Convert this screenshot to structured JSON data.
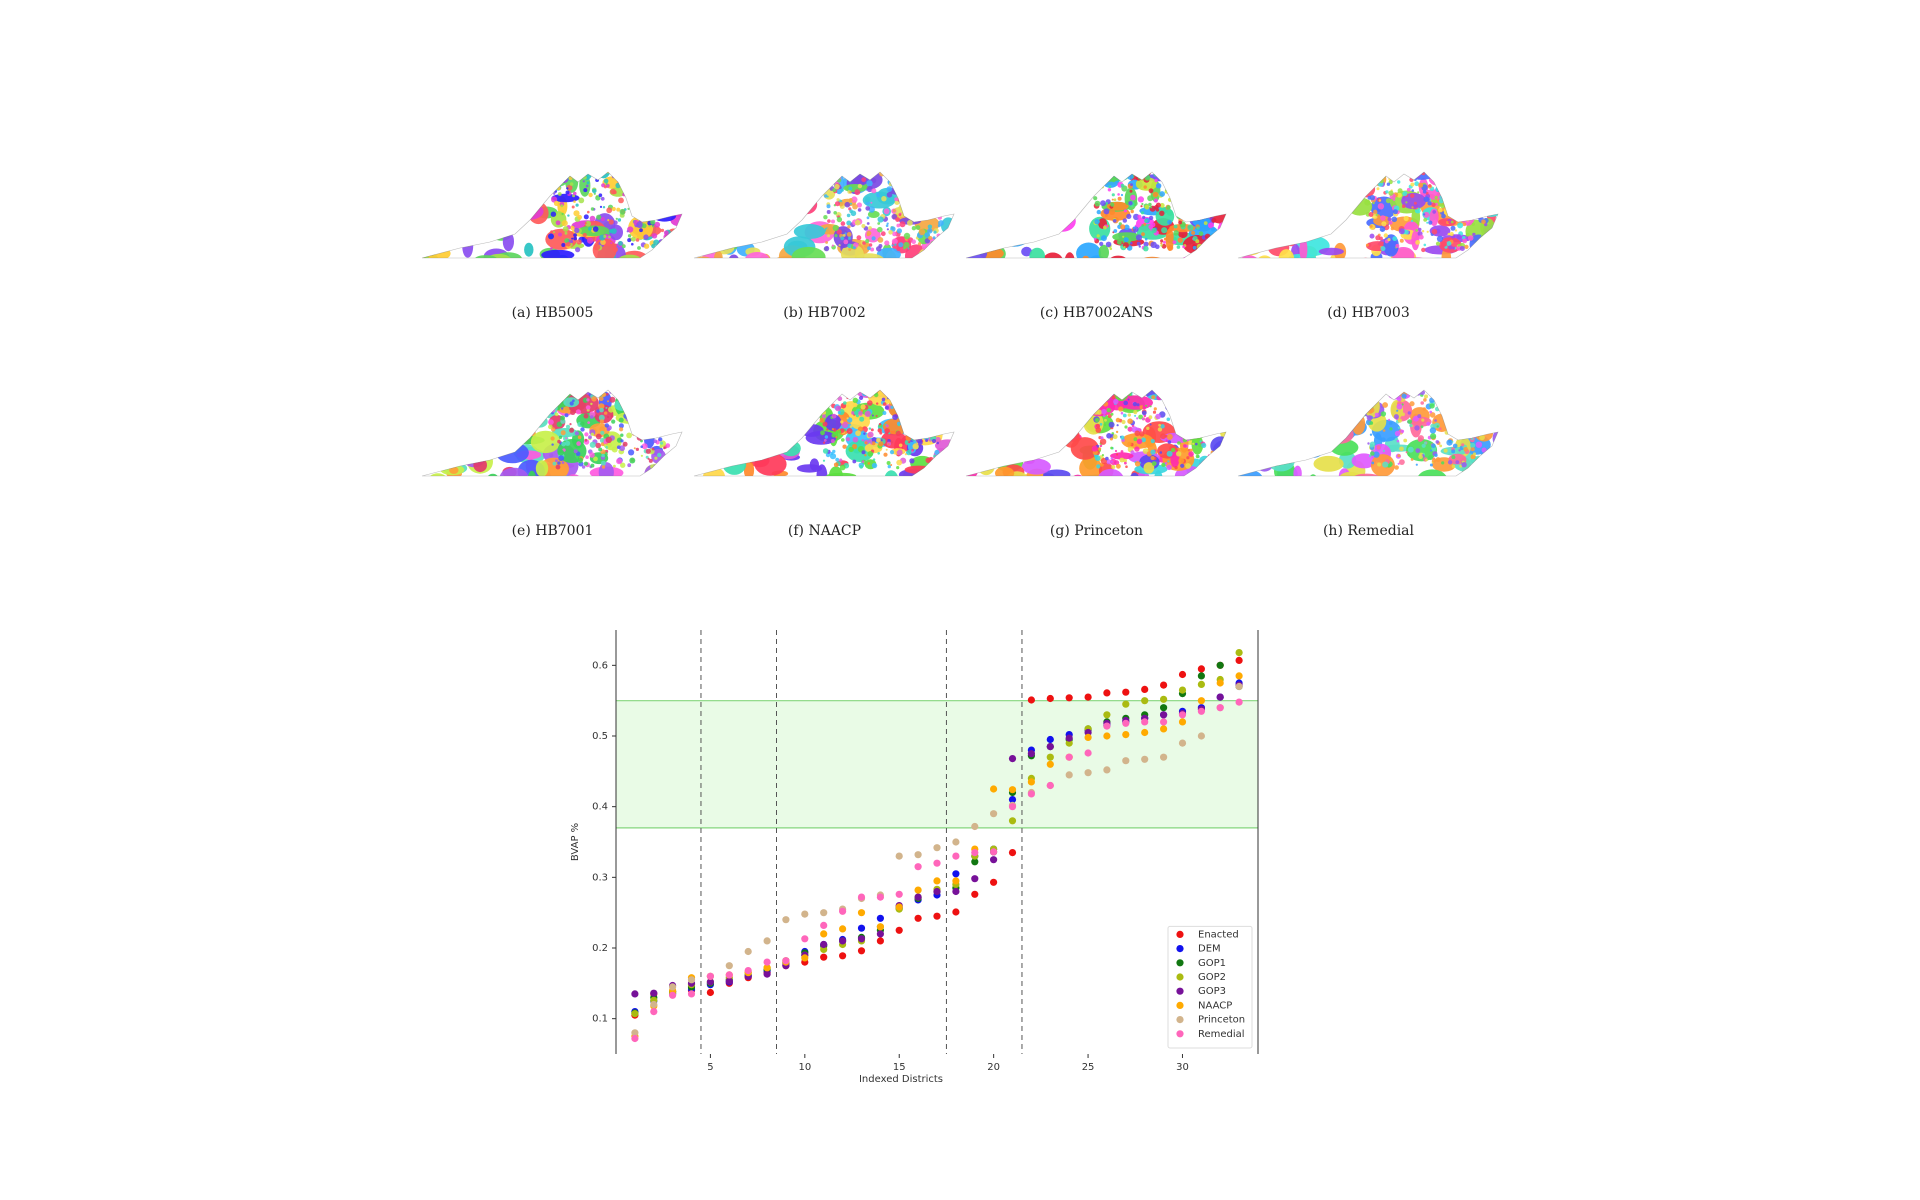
{
  "maps": [
    {
      "caption": "(a) HB5005",
      "palette": [
        "#2b1cff",
        "#e23bd2",
        "#5cd65c",
        "#ffcc33",
        "#26c2c2",
        "#ff5a5a",
        "#8a4df0",
        "#a5e34a"
      ]
    },
    {
      "caption": "(b) HB7002",
      "palette": [
        "#e6e05a",
        "#37c9d8",
        "#ff3f7a",
        "#66dd55",
        "#7b49e3",
        "#f5a742",
        "#3fb0ff",
        "#ff66d9"
      ]
    },
    {
      "caption": "(c) HB7002ANS",
      "palette": [
        "#e8203a",
        "#3be0a0",
        "#c9e63a",
        "#6a4df5",
        "#ff8a2b",
        "#2ba7ff",
        "#ff3ff0",
        "#59d659"
      ]
    },
    {
      "caption": "(d) HB7003",
      "palette": [
        "#4a6dff",
        "#3ee6e0",
        "#ff5ad2",
        "#98e040",
        "#ff9a3a",
        "#9a4af0",
        "#ffe14a",
        "#ff4a6a"
      ]
    },
    {
      "caption": "(e) HB7001",
      "palette": [
        "#57e0c0",
        "#c8f04a",
        "#ff5ae0",
        "#4a5bff",
        "#ff9e3a",
        "#39d15a",
        "#e43a6a",
        "#a65af0"
      ]
    },
    {
      "caption": "(f) NAACP",
      "palette": [
        "#e05ad6",
        "#3ac0ff",
        "#ff8a2b",
        "#5ce040",
        "#6a3af0",
        "#ffd84a",
        "#ff3a5a",
        "#39e0b0"
      ]
    },
    {
      "caption": "(g) Princeton",
      "palette": [
        "#d65aff",
        "#ff4a4a",
        "#e8e04a",
        "#3ad6e0",
        "#ff2bb0",
        "#62e040",
        "#5a4af0",
        "#ff9a2b"
      ]
    },
    {
      "caption": "(h) Remedial",
      "palette": [
        "#3a9dff",
        "#e05aff",
        "#ff6a9a",
        "#5ae0c8",
        "#e6e04a",
        "#9a5af0",
        "#4ae05a",
        "#ff9a3a"
      ]
    }
  ],
  "chart_data": {
    "type": "scatter",
    "xlabel": "Indexed Districts",
    "ylabel": "BVAP %",
    "xlim": [
      0,
      34
    ],
    "ylim": [
      0.05,
      0.65
    ],
    "xticks": [
      5,
      10,
      15,
      20,
      25,
      30
    ],
    "yticks": [
      0.1,
      0.2,
      0.3,
      0.4,
      0.5,
      0.6
    ],
    "vlines": [
      4.5,
      8.5,
      17.5,
      21.5
    ],
    "band": [
      0.37,
      0.55
    ],
    "legend_position": "lower-right",
    "series": [
      {
        "name": "Enacted",
        "color": "#ee1111",
        "values": [
          0.105,
          0.135,
          0.138,
          0.14,
          0.137,
          0.15,
          0.158,
          0.165,
          0.175,
          0.18,
          0.187,
          0.189,
          0.196,
          0.21,
          0.225,
          0.242,
          0.245,
          0.251,
          0.276,
          0.293,
          0.335,
          0.551,
          0.553,
          0.554,
          0.555,
          0.561,
          0.562,
          0.566,
          0.572,
          0.587,
          0.595,
          0.6,
          0.607
        ]
      },
      {
        "name": "DEM",
        "color": "#1111ee",
        "values": [
          0.11,
          0.125,
          0.135,
          0.142,
          0.148,
          0.152,
          0.16,
          0.168,
          0.178,
          0.195,
          0.205,
          0.212,
          0.228,
          0.242,
          0.258,
          0.268,
          0.275,
          0.305,
          0.33,
          0.34,
          0.41,
          0.48,
          0.495,
          0.502,
          0.508,
          0.515,
          0.52,
          0.525,
          0.53,
          0.535,
          0.54,
          0.555,
          0.575
        ]
      },
      {
        "name": "GOP1",
        "color": "#117711",
        "values": [
          0.108,
          0.13,
          0.138,
          0.145,
          0.15,
          0.155,
          0.162,
          0.17,
          0.18,
          0.193,
          0.203,
          0.21,
          0.215,
          0.225,
          0.256,
          0.27,
          0.28,
          0.285,
          0.322,
          0.336,
          0.42,
          0.472,
          0.485,
          0.495,
          0.51,
          0.52,
          0.525,
          0.53,
          0.54,
          0.56,
          0.585,
          0.6,
          0.57
        ]
      },
      {
        "name": "GOP2",
        "color": "#aabb11",
        "values": [
          0.107,
          0.126,
          0.136,
          0.148,
          0.152,
          0.158,
          0.165,
          0.172,
          0.182,
          0.19,
          0.198,
          0.205,
          0.21,
          0.23,
          0.255,
          0.272,
          0.283,
          0.29,
          0.33,
          0.34,
          0.38,
          0.44,
          0.47,
          0.49,
          0.51,
          0.53,
          0.545,
          0.55,
          0.552,
          0.565,
          0.573,
          0.58,
          0.618
        ]
      },
      {
        "name": "GOP3",
        "color": "#771199",
        "values": [
          0.135,
          0.136,
          0.147,
          0.15,
          0.152,
          0.153,
          0.16,
          0.163,
          0.175,
          0.19,
          0.205,
          0.21,
          0.213,
          0.22,
          0.26,
          0.272,
          0.28,
          0.28,
          0.298,
          0.325,
          0.468,
          0.475,
          0.485,
          0.497,
          0.505,
          0.518,
          0.522,
          0.525,
          0.53,
          0.532,
          0.538,
          0.555,
          0.572
        ]
      },
      {
        "name": "NAACP",
        "color": "#ffaa00",
        "values": [
          0.075,
          0.118,
          0.14,
          0.158,
          0.16,
          0.162,
          0.165,
          0.172,
          0.18,
          0.186,
          0.22,
          0.227,
          0.25,
          0.23,
          0.258,
          0.282,
          0.295,
          0.295,
          0.34,
          0.425,
          0.424,
          0.435,
          0.46,
          0.47,
          0.498,
          0.5,
          0.502,
          0.505,
          0.51,
          0.52,
          0.55,
          0.575,
          0.585
        ]
      },
      {
        "name": "Princeton",
        "color": "#d2b48c",
        "values": [
          0.08,
          0.12,
          0.145,
          0.155,
          0.16,
          0.175,
          0.195,
          0.21,
          0.24,
          0.248,
          0.25,
          0.255,
          0.27,
          0.275,
          0.33,
          0.332,
          0.342,
          0.35,
          0.372,
          0.39,
          0.402,
          0.42,
          0.43,
          0.445,
          0.448,
          0.452,
          0.465,
          0.467,
          0.47,
          0.49,
          0.5,
          0.54,
          0.57
        ]
      },
      {
        "name": "Remedial",
        "color": "#ff66bb",
        "values": [
          0.072,
          0.11,
          0.133,
          0.135,
          0.16,
          0.162,
          0.168,
          0.18,
          0.182,
          0.213,
          0.232,
          0.252,
          0.272,
          0.272,
          0.276,
          0.315,
          0.32,
          0.33,
          0.335,
          0.336,
          0.4,
          0.418,
          0.43,
          0.47,
          0.476,
          0.514,
          0.518,
          0.52,
          0.52,
          0.53,
          0.535,
          0.54,
          0.548
        ]
      }
    ]
  }
}
